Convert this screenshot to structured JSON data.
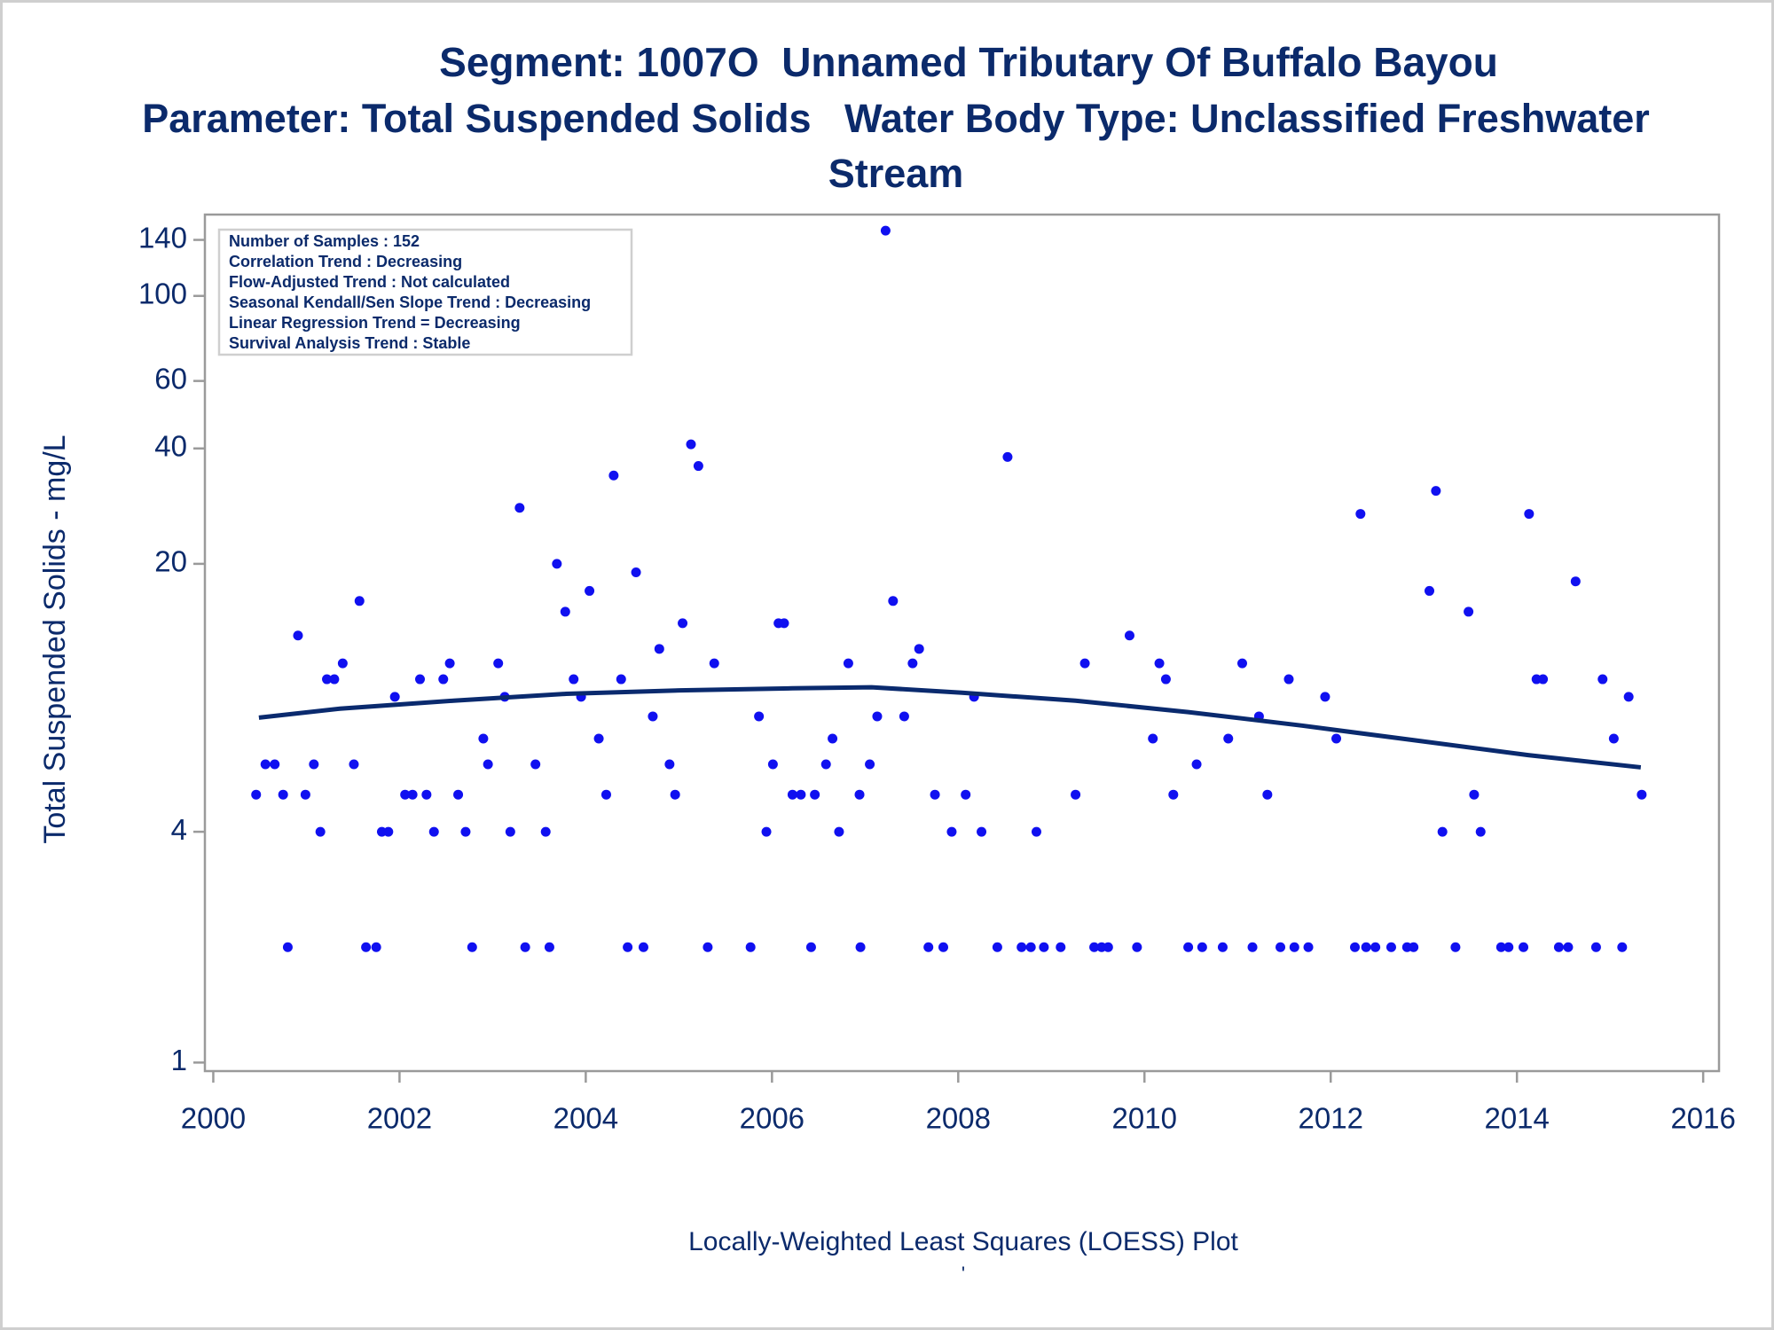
{
  "chart_data": {
    "type": "scatter",
    "title": "Segment: 1007O  Unnamed Tributary Of Buffalo Bayou",
    "subtitle": "Parameter: Total Suspended Solids   Water Body Type: Unclassified Freshwater Stream",
    "y_label": "Total Suspended Solids - mg/L",
    "footnote": "Locally-Weighted Least Squares (LOESS) Plot",
    "footnote_mark": "'",
    "annotations": [
      "Number of Samples : 152",
      "Correlation Trend : Decreasing",
      "Flow-Adjusted Trend : Not calculated",
      "Seasonal Kendall/Sen Slope Trend : Decreasing",
      "Linear Regression Trend = Decreasing",
      "Survival Analysis Trend : Stable"
    ],
    "y_log": true,
    "xlim": [
      1999.91,
      2016.17
    ],
    "xticks": [
      2000,
      2002,
      2004,
      2006,
      2008,
      2010,
      2012,
      2014,
      2016
    ],
    "ylim": [
      0.95,
      163
    ],
    "yticks": [
      1,
      4,
      20,
      40,
      60,
      100,
      140
    ],
    "text_color": "#0b2a6b",
    "points": {
      "color": "#1010f0",
      "x": [
        2000.46,
        2000.56,
        2000.66,
        2000.75,
        2000.8,
        2000.91,
        2000.99,
        2001.08,
        2001.15,
        2001.22,
        2001.3,
        2001.39,
        2001.51,
        2001.57,
        2001.64,
        2001.75,
        2001.81,
        2001.88,
        2001.95,
        2002.06,
        2002.14,
        2002.22,
        2002.29,
        2002.37,
        2002.47,
        2002.54,
        2002.63,
        2002.71,
        2002.78,
        2002.9,
        2002.95,
        2003.06,
        2003.13,
        2003.19,
        2003.29,
        2003.35,
        2003.46,
        2003.57,
        2003.61,
        2003.69,
        2003.78,
        2003.87,
        2003.95,
        2004.04,
        2004.14,
        2004.22,
        2004.3,
        2004.38,
        2004.45,
        2004.54,
        2004.62,
        2004.72,
        2004.79,
        2004.9,
        2004.96,
        2005.04,
        2005.13,
        2005.21,
        2005.31,
        2005.38,
        2005.77,
        2005.86,
        2005.94,
        2006.01,
        2006.07,
        2006.13,
        2006.22,
        2006.31,
        2006.42,
        2006.46,
        2006.58,
        2006.65,
        2006.72,
        2006.82,
        2006.94,
        2006.95,
        2007.05,
        2007.13,
        2007.22,
        2007.3,
        2007.42,
        2007.51,
        2007.58,
        2007.68,
        2007.75,
        2007.84,
        2007.93,
        2008.08,
        2008.17,
        2008.25,
        2008.42,
        2008.53,
        2008.68,
        2008.78,
        2008.84,
        2008.92,
        2009.1,
        2009.26,
        2009.36,
        2009.46,
        2009.54,
        2009.61,
        2009.84,
        2009.92,
        2010.09,
        2010.16,
        2010.23,
        2010.31,
        2010.47,
        2010.56,
        2010.62,
        2010.84,
        2010.9,
        2011.05,
        2011.16,
        2011.23,
        2011.32,
        2011.46,
        2011.55,
        2011.61,
        2011.76,
        2011.94,
        2012.06,
        2012.26,
        2012.32,
        2012.38,
        2012.48,
        2012.65,
        2012.82,
        2012.89,
        2013.06,
        2013.13,
        2013.2,
        2013.34,
        2013.48,
        2013.54,
        2013.61,
        2013.83,
        2013.91,
        2014.07,
        2014.13,
        2014.21,
        2014.28,
        2014.45,
        2014.55,
        2014.63,
        2014.85,
        2014.92,
        2015.04,
        2015.13,
        2015.2,
        2015.34
      ],
      "values": [
        5,
        6,
        6,
        5,
        2,
        13,
        5,
        6,
        4,
        10,
        10,
        11,
        6,
        16,
        2,
        2,
        4,
        4,
        9,
        5,
        5,
        10,
        5,
        4,
        10,
        11,
        5,
        4,
        2,
        7,
        6,
        11,
        9,
        4,
        28,
        2,
        6,
        4,
        2,
        20,
        15,
        10,
        9,
        17,
        7,
        5,
        34,
        10,
        2,
        19,
        2,
        8,
        12,
        6,
        5,
        14,
        41,
        36,
        2,
        11,
        2,
        8,
        4,
        6,
        14,
        14,
        5,
        5,
        2,
        5,
        6,
        7,
        4,
        11,
        5,
        2,
        6,
        8,
        148,
        16,
        8,
        11,
        12,
        2,
        5,
        2,
        4,
        5,
        9,
        4,
        2,
        38,
        2,
        2,
        4,
        2,
        2,
        5,
        11,
        2,
        2,
        2,
        13,
        2,
        7,
        11,
        10,
        5,
        2,
        6,
        2,
        2,
        7,
        11,
        2,
        8,
        5,
        2,
        10,
        2,
        2,
        9,
        7,
        2,
        27,
        2,
        2,
        2,
        2,
        2,
        17,
        31,
        4,
        2,
        15,
        5,
        4,
        2,
        2,
        2,
        27,
        10,
        10,
        2,
        2,
        18,
        2,
        10,
        7,
        2,
        9,
        5
      ]
    },
    "loess": {
      "color": "#0a2a6e",
      "x": [
        2000.49,
        2001.36,
        2002.58,
        2003.79,
        2005.01,
        2006.22,
        2007.07,
        2008.04,
        2009.26,
        2010.47,
        2011.69,
        2012.9,
        2014.12,
        2015.33
      ],
      "values": [
        7.94,
        8.38,
        8.79,
        9.16,
        9.35,
        9.47,
        9.53,
        9.22,
        8.79,
        8.21,
        7.57,
        6.93,
        6.34,
        5.89
      ]
    }
  }
}
